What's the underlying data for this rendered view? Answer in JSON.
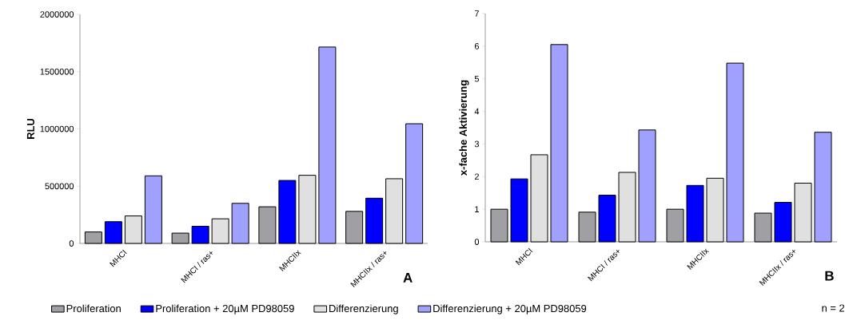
{
  "chart_data": [
    {
      "type": "bar",
      "title": "A",
      "ylabel": "RLU",
      "categories": [
        "MHCI",
        "MHCI / ras+",
        "MHCIIx",
        "MHCIIx / ras+"
      ],
      "series": [
        {
          "name": "Proliferation",
          "color": "#a0a0a4",
          "values": [
            100000,
            90000,
            320000,
            280000
          ]
        },
        {
          "name": "Proliferation + 20µM PD98059",
          "color": "#0000ff",
          "values": [
            190000,
            150000,
            550000,
            395000
          ]
        },
        {
          "name": "Differenzierung",
          "color": "#e0e0e0",
          "values": [
            240000,
            215000,
            595000,
            565000
          ]
        },
        {
          "name": "Differenzierung + 20µM PD98059",
          "color": "#a0a0ff",
          "values": [
            590000,
            350000,
            1715000,
            1045000
          ]
        }
      ],
      "ylim": [
        0,
        2000000
      ],
      "yticks": [
        0,
        500000,
        1000000,
        1500000,
        2000000
      ],
      "legend": "bottom"
    },
    {
      "type": "bar",
      "title": "B",
      "ylabel": "x-fache Aktivierung",
      "categories": [
        "MHCI",
        "MHCI / ras+",
        "MHCIIx",
        "MHCIIx / ras+"
      ],
      "series": [
        {
          "color": "#a0a0a4",
          "values": [
            1.0,
            0.91,
            1.0,
            0.88
          ]
        },
        {
          "color": "#0000ff",
          "values": [
            1.93,
            1.43,
            1.73,
            1.21
          ]
        },
        {
          "color": "#e0e0e0",
          "values": [
            2.67,
            2.13,
            1.95,
            1.8
          ]
        },
        {
          "color": "#a0a0ff",
          "values": [
            6.05,
            3.43,
            5.48,
            3.36
          ]
        }
      ],
      "ylim": [
        0,
        7
      ],
      "yticks": [
        0,
        1,
        2,
        3,
        4,
        5,
        6,
        7
      ],
      "annotations": [
        "n = 2"
      ]
    }
  ]
}
